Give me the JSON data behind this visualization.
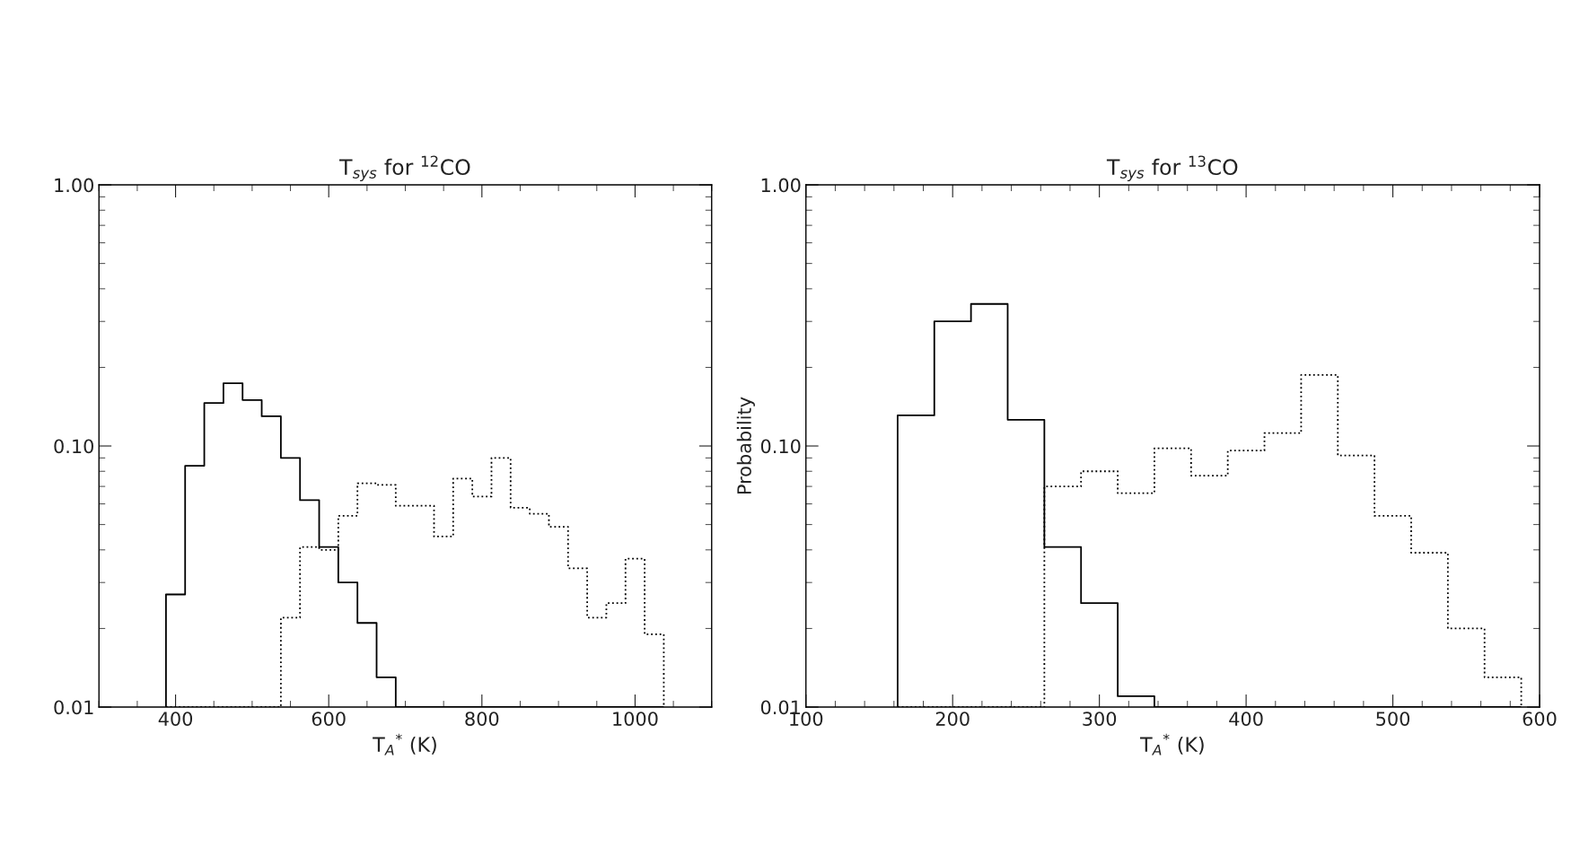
{
  "chart_data": [
    {
      "type": "histogram",
      "title": "T$_{sys}$ for $^{12}$CO",
      "xlabel": "T$_{A}$$^{*}$ (K)",
      "log": "y",
      "xlim": [
        300,
        1100
      ],
      "xticks": [
        400,
        600,
        800,
        1000
      ],
      "ylim": [
        0.01,
        1.0
      ],
      "yticks": [
        {
          "value": 0.01,
          "label": "0.01"
        },
        {
          "value": 0.1,
          "label": "0.10"
        },
        {
          "value": 1.0,
          "label": "1.00"
        }
      ],
      "bins": [
        387.5,
        412.5,
        437.5,
        462.5,
        487.5,
        512.5,
        537.5,
        562.5,
        587.5,
        612.5,
        637.5,
        662.5,
        687.5,
        712.5,
        737.5,
        762.5,
        787.5,
        812.5,
        837.5,
        862.5,
        887.5,
        912.5,
        937.5,
        962.5,
        987.5,
        1012.5,
        1037.5
      ],
      "series": [
        {
          "color": "#000000",
          "line_style": "solid",
          "values": [
            0.027,
            0.084,
            0.146,
            0.174,
            0.15,
            0.13,
            0.09,
            0.062,
            0.041,
            0.03,
            0.021,
            0.013,
            null,
            null,
            null,
            null,
            null,
            null,
            null,
            null,
            null,
            null,
            null,
            null,
            null,
            null
          ]
        },
        {
          "color": "#000000",
          "line_style": "dotted",
          "values": [
            null,
            null,
            null,
            null,
            null,
            null,
            0.022,
            0.041,
            0.04,
            0.054,
            0.072,
            0.071,
            0.059,
            0.059,
            0.045,
            0.075,
            0.064,
            0.09,
            0.058,
            0.055,
            0.049,
            0.034,
            0.022,
            0.025,
            0.037,
            0.019
          ]
        }
      ]
    },
    {
      "type": "histogram",
      "title": "T$_{sys}$ for $^{13}$CO",
      "xlabel": "T$_{A}$$^{*}$ (K)",
      "ylabel": "Probability",
      "log": "y",
      "xlim": [
        100,
        600
      ],
      "xticks": [
        100,
        200,
        300,
        400,
        500,
        600
      ],
      "ylim": [
        0.01,
        1.0
      ],
      "yticks": [
        {
          "value": 0.01,
          "label": "0.01"
        },
        {
          "value": 0.1,
          "label": "0.10"
        },
        {
          "value": 1.0,
          "label": "1.00"
        }
      ],
      "bins": [
        162.5,
        187.5,
        212.5,
        237.5,
        262.5,
        287.5,
        312.5,
        337.5,
        362.5,
        387.5,
        412.5,
        437.5,
        462.5,
        487.5,
        512.5,
        537.5,
        562.5,
        587.5
      ],
      "series": [
        {
          "color": "#000000",
          "line_style": "solid",
          "values": [
            0.131,
            0.3,
            0.35,
            0.126,
            0.041,
            0.025,
            0.011,
            null,
            null,
            null,
            null,
            null,
            null,
            null,
            null,
            null,
            null
          ]
        },
        {
          "color": "#000000",
          "line_style": "dotted",
          "values": [
            null,
            null,
            null,
            null,
            0.07,
            0.08,
            0.066,
            0.098,
            0.077,
            0.096,
            0.112,
            0.187,
            0.092,
            0.054,
            0.039,
            0.02,
            0.013
          ]
        }
      ]
    }
  ]
}
